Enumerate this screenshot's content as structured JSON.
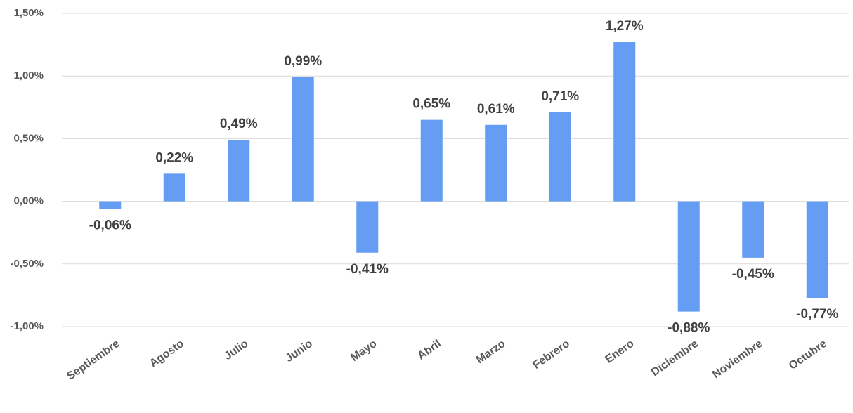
{
  "chart_data": {
    "type": "bar",
    "categories": [
      "Septiembre",
      "Agosto",
      "Julio",
      "Junio",
      "Mayo",
      "Abril",
      "Marzo",
      "Febrero",
      "Enero",
      "Diciembre",
      "Noviembre",
      "Octubre"
    ],
    "values": [
      -0.06,
      0.22,
      0.49,
      0.99,
      -0.41,
      0.65,
      0.61,
      0.71,
      1.27,
      -0.88,
      -0.45,
      -0.77
    ],
    "value_labels": [
      "-0,06%",
      "0,22%",
      "0,49%",
      "0,99%",
      "-0,41%",
      "0,65%",
      "0,61%",
      "0,71%",
      "1,27%",
      "-0,88%",
      "-0,45%",
      "-0,77%"
    ],
    "color": "#659cf4",
    "ylim": [
      -1,
      1.5
    ],
    "yticks": [
      {
        "value": -1,
        "label": "-1,00%"
      },
      {
        "value": -0.5,
        "label": "-0,50%"
      },
      {
        "value": 0,
        "label": "0,00%"
      },
      {
        "value": 0.5,
        "label": "0,50%"
      },
      {
        "value": 1,
        "label": "1,00%"
      },
      {
        "value": 1.5,
        "label": "1,50%"
      }
    ],
    "grid": true
  }
}
